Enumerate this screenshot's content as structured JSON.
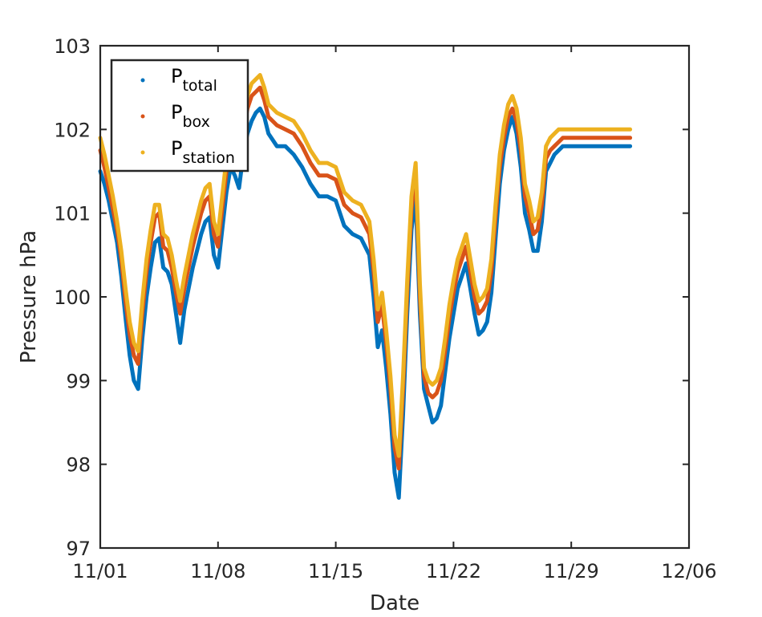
{
  "chart_data": {
    "type": "line",
    "xlabel": "Date",
    "ylabel": "Pressure hPa",
    "x_ticks": [
      "11/01",
      "11/08",
      "11/15",
      "11/22",
      "11/29",
      "12/06"
    ],
    "x_tick_days": [
      0,
      7,
      14,
      21,
      28,
      35
    ],
    "xlim_labels": [
      "11/01",
      "12/06"
    ],
    "y_ticks": [
      97,
      98,
      99,
      100,
      101,
      102,
      103
    ],
    "ylim": [
      97,
      103
    ],
    "grid": false,
    "legend_position": "top-left",
    "colors": {
      "total": "#0072BD",
      "box": "#D95319",
      "station": "#EDB120",
      "axis": "#262626"
    },
    "x_dates": [
      "11/01 00:00",
      "11/01 06:00",
      "11/01 12:00",
      "11/01 18:00",
      "11/02 00:00",
      "11/02 06:00",
      "11/02 12:00",
      "11/02 18:00",
      "11/03 00:00",
      "11/03 06:00",
      "11/03 12:00",
      "11/03 18:00",
      "11/04 00:00",
      "11/04 06:00",
      "11/04 12:00",
      "11/04 18:00",
      "11/05 00:00",
      "11/05 06:00",
      "11/05 12:00",
      "11/05 18:00",
      "11/06 00:00",
      "11/06 06:00",
      "11/06 12:00",
      "11/06 18:00",
      "11/07 00:00",
      "11/07 06:00",
      "11/07 12:00",
      "11/07 18:00",
      "11/08 00:00",
      "11/08 06:00",
      "11/08 12:00",
      "11/08 18:00",
      "11/09 00:00",
      "11/09 06:00",
      "11/09 12:00",
      "11/09 18:00",
      "11/10 00:00",
      "11/10 06:00",
      "11/10 12:00",
      "11/10 18:00",
      "11/11 00:00",
      "11/11 12:00",
      "11/12 00:00",
      "11/12 12:00",
      "11/13 00:00",
      "11/13 12:00",
      "11/14 00:00",
      "11/14 12:00",
      "11/15 00:00",
      "11/15 12:00",
      "11/16 00:00",
      "11/16 12:00",
      "11/17 00:00",
      "11/17 06:00",
      "11/17 12:00",
      "11/17 18:00",
      "11/18 00:00",
      "11/18 06:00",
      "11/18 12:00",
      "11/18 18:00",
      "11/19 00:00",
      "11/19 06:00",
      "11/19 12:00",
      "11/19 18:00",
      "11/20 00:00",
      "11/20 06:00",
      "11/20 12:00",
      "11/20 18:00",
      "11/21 00:00",
      "11/21 06:00",
      "11/21 12:00",
      "11/21 18:00",
      "11/22 00:00",
      "11/22 06:00",
      "11/22 12:00",
      "11/22 18:00",
      "11/23 00:00",
      "11/23 06:00",
      "11/23 12:00",
      "11/23 18:00",
      "11/24 00:00",
      "11/24 06:00",
      "11/24 12:00",
      "11/24 18:00",
      "11/25 00:00",
      "11/25 06:00",
      "11/25 12:00",
      "11/25 18:00",
      "11/26 00:00",
      "11/26 06:00",
      "11/26 12:00",
      "11/26 18:00",
      "11/27 00:00",
      "11/27 06:00",
      "11/27 12:00",
      "11/27 18:00",
      "11/28 00:00",
      "11/28 06:00",
      "11/28 12:00",
      "11/28 18:00",
      "11/29 00:00",
      "11/29 06:00",
      "11/29 12:00",
      "11/29 18:00",
      "11/30 00:00",
      "11/30 06:00",
      "11/30 12:00",
      "11/30 18:00",
      "12/01 00:00",
      "12/01 06:00",
      "12/01 12:00",
      "12/01 18:00",
      "12/02 00:00",
      "12/02 06:00",
      "12/02 12:00"
    ],
    "series": [
      {
        "name": "P_total",
        "legend_main": "P",
        "legend_sub": "total",
        "color": "#0072BD",
        "y": [
          101.5,
          101.35,
          101.15,
          100.9,
          100.65,
          100.25,
          99.75,
          99.3,
          99.0,
          98.9,
          99.5,
          100.0,
          100.35,
          100.65,
          100.7,
          100.35,
          100.3,
          100.15,
          99.8,
          99.45,
          99.85,
          100.1,
          100.35,
          100.55,
          100.75,
          100.9,
          100.95,
          100.5,
          100.35,
          100.8,
          101.25,
          101.55,
          101.45,
          101.3,
          101.7,
          101.95,
          102.1,
          102.2,
          102.25,
          102.15,
          101.95,
          101.8,
          101.8,
          101.7,
          101.55,
          101.35,
          101.2,
          101.2,
          101.15,
          100.85,
          100.75,
          100.7,
          100.5,
          100.0,
          99.4,
          99.6,
          99.15,
          98.6,
          97.9,
          97.6,
          98.6,
          99.8,
          100.8,
          101.2,
          99.8,
          98.9,
          98.7,
          98.5,
          98.55,
          98.7,
          99.1,
          99.5,
          99.8,
          100.1,
          100.25,
          100.4,
          100.1,
          99.8,
          99.55,
          99.6,
          99.7,
          100.05,
          100.7,
          101.35,
          101.75,
          102.0,
          102.15,
          101.95,
          101.55,
          101.0,
          100.8,
          100.55,
          100.55,
          100.9,
          101.5,
          101.6,
          101.7,
          101.75,
          101.8,
          101.8,
          101.8,
          101.8,
          101.8,
          101.8,
          101.8,
          101.8,
          101.8,
          101.8,
          101.8,
          101.8,
          101.8,
          101.8,
          101.8,
          101.8,
          101.8
        ]
      },
      {
        "name": "P_box",
        "legend_main": "P",
        "legend_sub": "box",
        "color": "#D95319",
        "y": [
          101.75,
          101.55,
          101.3,
          101.05,
          100.8,
          100.45,
          99.95,
          99.55,
          99.3,
          99.2,
          99.8,
          100.3,
          100.65,
          100.95,
          101.0,
          100.6,
          100.55,
          100.35,
          100.05,
          99.8,
          100.1,
          100.35,
          100.6,
          100.8,
          101.0,
          101.15,
          101.2,
          100.75,
          100.6,
          101.05,
          101.5,
          101.8,
          101.75,
          101.6,
          101.95,
          102.25,
          102.4,
          102.45,
          102.5,
          102.35,
          102.15,
          102.05,
          102.0,
          101.95,
          101.8,
          101.6,
          101.45,
          101.45,
          101.4,
          101.1,
          101.0,
          100.95,
          100.75,
          100.3,
          99.7,
          99.9,
          99.45,
          98.9,
          98.2,
          97.95,
          98.9,
          100.05,
          101.05,
          101.5,
          100.0,
          99.05,
          98.85,
          98.8,
          98.85,
          99.0,
          99.35,
          99.75,
          100.05,
          100.3,
          100.45,
          100.6,
          100.3,
          100.0,
          99.8,
          99.85,
          99.95,
          100.3,
          100.95,
          101.55,
          101.9,
          102.15,
          102.25,
          102.1,
          101.75,
          101.2,
          101.0,
          100.75,
          100.8,
          101.1,
          101.65,
          101.75,
          101.8,
          101.85,
          101.9,
          101.9,
          101.9,
          101.9,
          101.9,
          101.9,
          101.9,
          101.9,
          101.9,
          101.9,
          101.9,
          101.9,
          101.9,
          101.9,
          101.9,
          101.9,
          101.9
        ]
      },
      {
        "name": "P_station",
        "legend_main": "P",
        "legend_sub": "station",
        "color": "#EDB120",
        "y": [
          101.9,
          101.7,
          101.45,
          101.2,
          100.9,
          100.55,
          100.1,
          99.7,
          99.45,
          99.35,
          99.95,
          100.45,
          100.8,
          101.1,
          101.1,
          100.75,
          100.7,
          100.5,
          100.2,
          99.95,
          100.25,
          100.5,
          100.75,
          100.95,
          101.15,
          101.3,
          101.35,
          100.9,
          100.75,
          101.2,
          101.65,
          101.95,
          101.9,
          101.75,
          102.1,
          102.4,
          102.55,
          102.6,
          102.65,
          102.5,
          102.3,
          102.2,
          102.15,
          102.1,
          101.95,
          101.75,
          101.6,
          101.6,
          101.55,
          101.25,
          101.15,
          101.1,
          100.9,
          100.45,
          99.85,
          100.05,
          99.6,
          99.05,
          98.35,
          98.1,
          99.05,
          100.2,
          101.2,
          101.6,
          100.15,
          99.15,
          99.0,
          98.95,
          99.0,
          99.15,
          99.5,
          99.9,
          100.2,
          100.45,
          100.6,
          100.75,
          100.45,
          100.15,
          99.95,
          100.0,
          100.1,
          100.45,
          101.1,
          101.7,
          102.05,
          102.3,
          102.4,
          102.25,
          101.9,
          101.35,
          101.15,
          100.9,
          100.95,
          101.25,
          101.8,
          101.9,
          101.95,
          102.0,
          102.0,
          102.0,
          102.0,
          102.0,
          102.0,
          102.0,
          102.0,
          102.0,
          102.0,
          102.0,
          102.0,
          102.0,
          102.0,
          102.0,
          102.0,
          102.0,
          102.0
        ]
      }
    ]
  }
}
